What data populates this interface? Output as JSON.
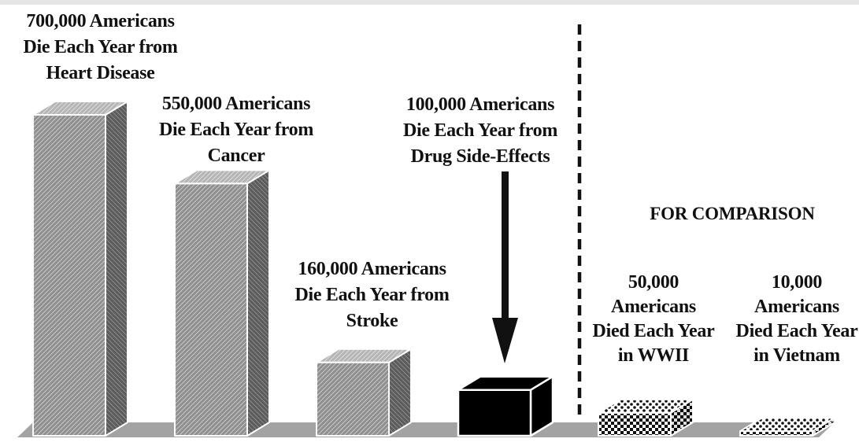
{
  "chart_data": {
    "type": "bar",
    "title": "",
    "xlabel": "",
    "ylabel": "",
    "grid": false,
    "comparison_heading": "FOR COMPARISON",
    "categories": [
      {
        "label_lines": [
          "700,000 Americans",
          "Die Each Year from",
          "Heart Disease"
        ],
        "value": 700000,
        "pattern": "gray-hatch",
        "group": "main"
      },
      {
        "label_lines": [
          "550,000 Americans",
          "Die Each Year from",
          "Cancer"
        ],
        "value": 550000,
        "pattern": "gray-hatch",
        "group": "main"
      },
      {
        "label_lines": [
          "160,000 Americans",
          "Die Each Year from",
          "Stroke"
        ],
        "value": 160000,
        "pattern": "gray-hatch",
        "group": "main"
      },
      {
        "label_lines": [
          "100,000 Americans",
          "Die Each Year from",
          "Drug Side-Effects"
        ],
        "value": 100000,
        "pattern": "solid-black",
        "group": "main",
        "highlighted_with_arrow": true
      },
      {
        "label_lines": [
          "50,000",
          "Americans",
          "Died Each Year",
          "in WWII"
        ],
        "value": 50000,
        "pattern": "checker",
        "group": "comparison"
      },
      {
        "label_lines": [
          "10,000",
          "Americans",
          "Died Each Year",
          "in Vietnam"
        ],
        "value": 10000,
        "pattern": "checker",
        "group": "comparison"
      }
    ],
    "colors": {
      "hatch_front": "#9a9a9a",
      "hatch_side": "#6f6f6f",
      "hatch_top": "#c4c4c4",
      "highlight_bar": "#000000",
      "floor": "#9e9e9e",
      "top_band": "#e6e6e6"
    }
  }
}
